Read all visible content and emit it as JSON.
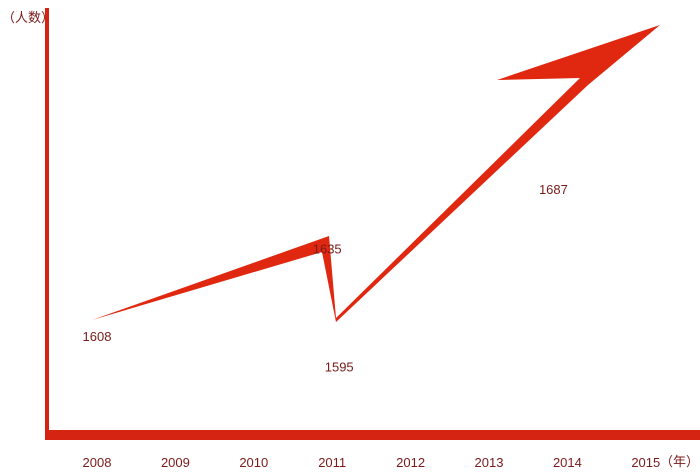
{
  "chart_data": {
    "type": "line",
    "xlabel": "（年）",
    "ylabel": "（人数）",
    "categories": [
      "2008",
      "2009",
      "2010",
      "2011",
      "2012",
      "2013",
      "2014",
      "2015"
    ],
    "points": [
      {
        "x": "2008",
        "y": 1608,
        "label": "1608"
      },
      {
        "x": "2011",
        "y": 1635,
        "label": "1635"
      },
      {
        "x": "2011",
        "y": 1595,
        "label": "1595"
      },
      {
        "x": "2014",
        "y": 1687,
        "label": "1687"
      }
    ],
    "color": "#e02810",
    "axis_color": "#d62412",
    "label_color": "#7a1a1a"
  }
}
